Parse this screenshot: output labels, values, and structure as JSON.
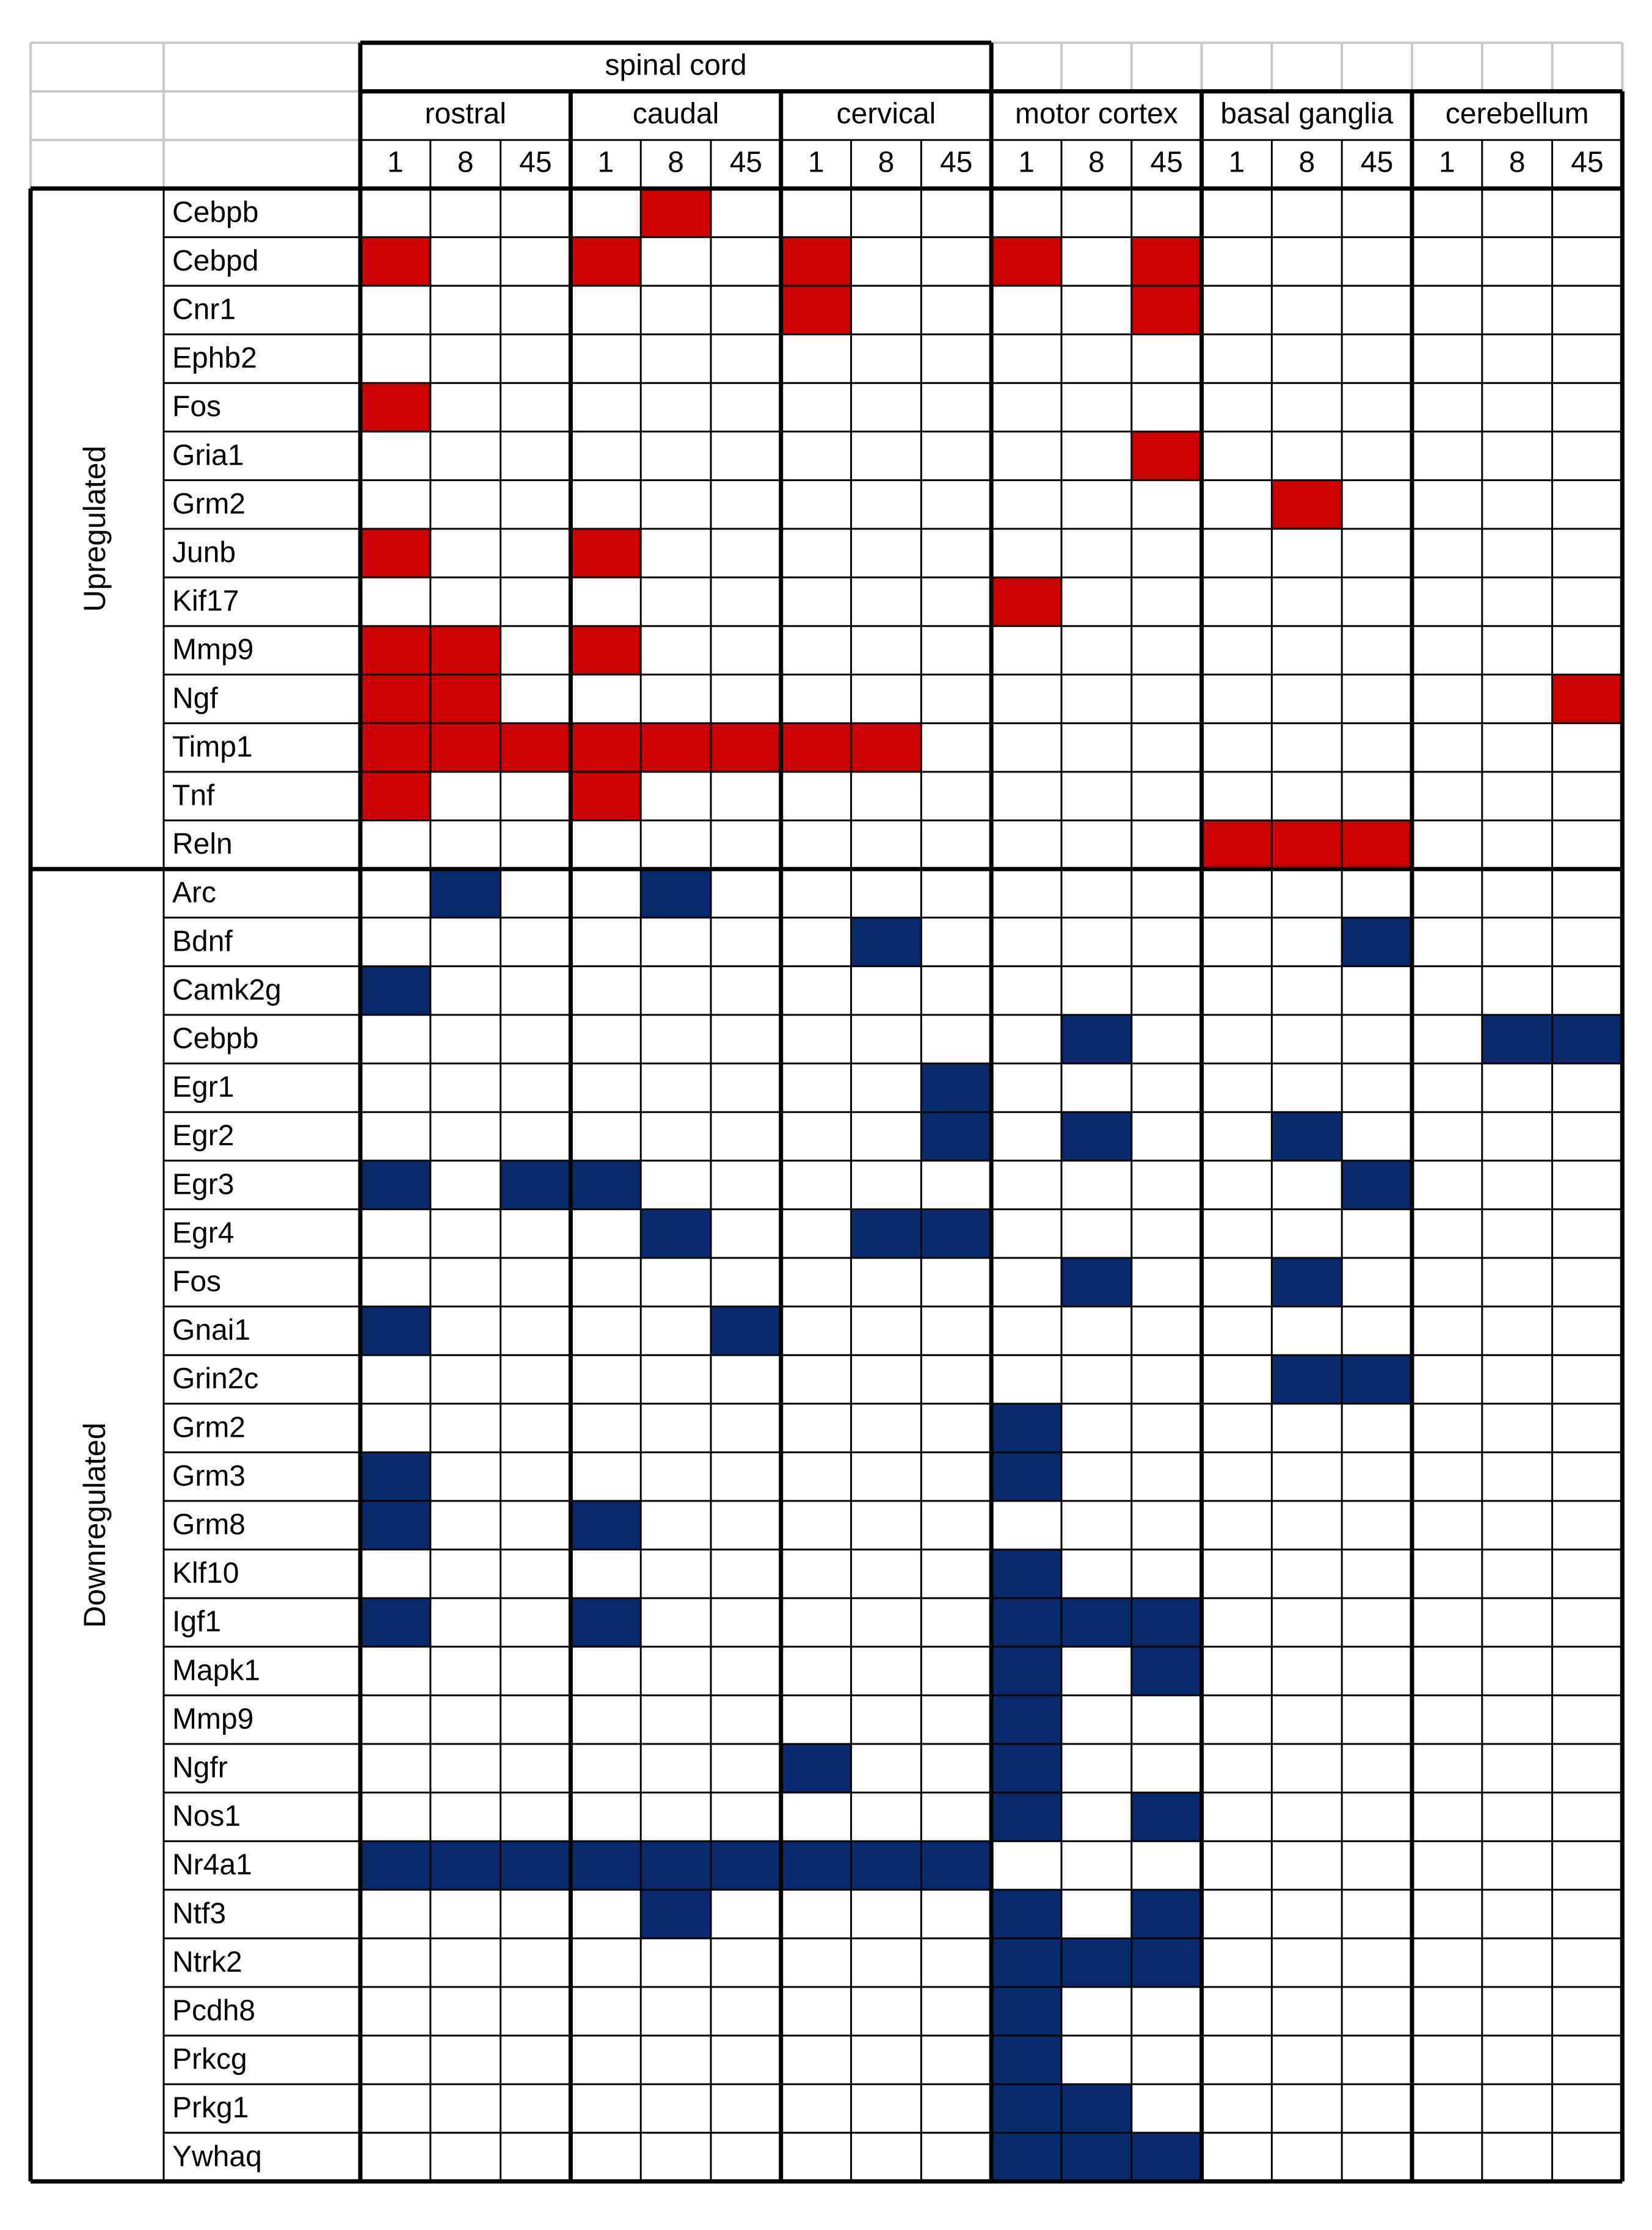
{
  "chart_data": {
    "type": "heatmap",
    "header": {
      "spinal_cord_label": "spinal cord",
      "regions": [
        "rostral",
        "caudal",
        "cervical",
        "motor cortex",
        "basal ganglia",
        "cerebellum"
      ],
      "timepoints": [
        "1",
        "8",
        "45"
      ]
    },
    "colors": {
      "up": "#cc0000",
      "down": "#0a2a6e",
      "grid": "#000000",
      "light_grid": "#c8c8c8",
      "none": "#ffffff"
    },
    "groups": [
      {
        "label": "Upregulated",
        "genes": [
          {
            "name": "Cebpb",
            "cells": [
              0,
              0,
              0,
              0,
              1,
              0,
              0,
              0,
              0,
              0,
              0,
              0,
              0,
              0,
              0,
              0,
              0,
              0
            ]
          },
          {
            "name": "Cebpd",
            "cells": [
              1,
              0,
              0,
              1,
              0,
              0,
              1,
              0,
              0,
              1,
              0,
              1,
              0,
              0,
              0,
              0,
              0,
              0
            ]
          },
          {
            "name": "Cnr1",
            "cells": [
              0,
              0,
              0,
              0,
              0,
              0,
              1,
              0,
              0,
              0,
              0,
              1,
              0,
              0,
              0,
              0,
              0,
              0
            ]
          },
          {
            "name": "Ephb2",
            "cells": [
              0,
              0,
              0,
              0,
              0,
              0,
              0,
              0,
              0,
              0,
              0,
              0,
              0,
              0,
              0,
              0,
              0,
              0
            ]
          },
          {
            "name": "Fos",
            "cells": [
              1,
              0,
              0,
              0,
              0,
              0,
              0,
              0,
              0,
              0,
              0,
              0,
              0,
              0,
              0,
              0,
              0,
              0
            ]
          },
          {
            "name": "Gria1",
            "cells": [
              0,
              0,
              0,
              0,
              0,
              0,
              0,
              0,
              0,
              0,
              0,
              1,
              0,
              0,
              0,
              0,
              0,
              0
            ]
          },
          {
            "name": "Grm2",
            "cells": [
              0,
              0,
              0,
              0,
              0,
              0,
              0,
              0,
              0,
              0,
              0,
              0,
              0,
              1,
              0,
              0,
              0,
              0
            ]
          },
          {
            "name": "Junb",
            "cells": [
              1,
              0,
              0,
              1,
              0,
              0,
              0,
              0,
              0,
              0,
              0,
              0,
              0,
              0,
              0,
              0,
              0,
              0
            ]
          },
          {
            "name": "Kif17",
            "cells": [
              0,
              0,
              0,
              0,
              0,
              0,
              0,
              0,
              0,
              1,
              0,
              0,
              0,
              0,
              0,
              0,
              0,
              0
            ]
          },
          {
            "name": "Mmp9",
            "cells": [
              1,
              1,
              0,
              1,
              0,
              0,
              0,
              0,
              0,
              0,
              0,
              0,
              0,
              0,
              0,
              0,
              0,
              0
            ]
          },
          {
            "name": "Ngf",
            "cells": [
              1,
              1,
              0,
              0,
              0,
              0,
              0,
              0,
              0,
              0,
              0,
              0,
              0,
              0,
              0,
              0,
              0,
              1
            ]
          },
          {
            "name": "Timp1",
            "cells": [
              1,
              1,
              1,
              1,
              1,
              1,
              1,
              1,
              0,
              0,
              0,
              0,
              0,
              0,
              0,
              0,
              0,
              0
            ]
          },
          {
            "name": "Tnf",
            "cells": [
              1,
              0,
              0,
              1,
              0,
              0,
              0,
              0,
              0,
              0,
              0,
              0,
              0,
              0,
              0,
              0,
              0,
              0
            ]
          },
          {
            "name": "Reln",
            "cells": [
              0,
              0,
              0,
              0,
              0,
              0,
              0,
              0,
              0,
              0,
              0,
              0,
              1,
              1,
              1,
              0,
              0,
              0
            ]
          }
        ]
      },
      {
        "label": "Downregulated",
        "genes": [
          {
            "name": "Arc",
            "cells": [
              0,
              -1,
              0,
              0,
              -1,
              0,
              0,
              0,
              0,
              0,
              0,
              0,
              0,
              0,
              0,
              0,
              0,
              0
            ]
          },
          {
            "name": "Bdnf",
            "cells": [
              0,
              0,
              0,
              0,
              0,
              0,
              0,
              -1,
              0,
              0,
              0,
              0,
              0,
              0,
              -1,
              0,
              0,
              0
            ]
          },
          {
            "name": "Camk2g",
            "cells": [
              -1,
              0,
              0,
              0,
              0,
              0,
              0,
              0,
              0,
              0,
              0,
              0,
              0,
              0,
              0,
              0,
              0,
              0
            ]
          },
          {
            "name": "Cebpb",
            "cells": [
              0,
              0,
              0,
              0,
              0,
              0,
              0,
              0,
              0,
              0,
              -1,
              0,
              0,
              0,
              0,
              0,
              -1,
              -1
            ]
          },
          {
            "name": "Egr1",
            "cells": [
              0,
              0,
              0,
              0,
              0,
              0,
              0,
              0,
              -1,
              0,
              0,
              0,
              0,
              0,
              0,
              0,
              0,
              0
            ]
          },
          {
            "name": "Egr2",
            "cells": [
              0,
              0,
              0,
              0,
              0,
              0,
              0,
              0,
              -1,
              0,
              -1,
              0,
              0,
              -1,
              0,
              0,
              0,
              0
            ]
          },
          {
            "name": "Egr3",
            "cells": [
              -1,
              0,
              -1,
              -1,
              0,
              0,
              0,
              0,
              0,
              0,
              0,
              0,
              0,
              0,
              -1,
              0,
              0,
              0
            ]
          },
          {
            "name": "Egr4",
            "cells": [
              0,
              0,
              0,
              0,
              -1,
              0,
              0,
              -1,
              -1,
              0,
              0,
              0,
              0,
              0,
              0,
              0,
              0,
              0
            ]
          },
          {
            "name": "Fos",
            "cells": [
              0,
              0,
              0,
              0,
              0,
              0,
              0,
              0,
              0,
              0,
              -1,
              0,
              0,
              -1,
              0,
              0,
              0,
              0
            ]
          },
          {
            "name": "Gnai1",
            "cells": [
              -1,
              0,
              0,
              0,
              0,
              -1,
              0,
              0,
              0,
              0,
              0,
              0,
              0,
              0,
              0,
              0,
              0,
              0
            ]
          },
          {
            "name": "Grin2c",
            "cells": [
              0,
              0,
              0,
              0,
              0,
              0,
              0,
              0,
              0,
              0,
              0,
              0,
              0,
              -1,
              -1,
              0,
              0,
              0
            ]
          },
          {
            "name": "Grm2",
            "cells": [
              0,
              0,
              0,
              0,
              0,
              0,
              0,
              0,
              0,
              -1,
              0,
              0,
              0,
              0,
              0,
              0,
              0,
              0
            ]
          },
          {
            "name": "Grm3",
            "cells": [
              -1,
              0,
              0,
              0,
              0,
              0,
              0,
              0,
              0,
              -1,
              0,
              0,
              0,
              0,
              0,
              0,
              0,
              0
            ]
          },
          {
            "name": "Grm8",
            "cells": [
              -1,
              0,
              0,
              -1,
              0,
              0,
              0,
              0,
              0,
              0,
              0,
              0,
              0,
              0,
              0,
              0,
              0,
              0
            ]
          },
          {
            "name": "Klf10",
            "cells": [
              0,
              0,
              0,
              0,
              0,
              0,
              0,
              0,
              0,
              -1,
              0,
              0,
              0,
              0,
              0,
              0,
              0,
              0
            ]
          },
          {
            "name": "Igf1",
            "cells": [
              -1,
              0,
              0,
              -1,
              0,
              0,
              0,
              0,
              0,
              -1,
              -1,
              -1,
              0,
              0,
              0,
              0,
              0,
              0
            ]
          },
          {
            "name": "Mapk1",
            "cells": [
              0,
              0,
              0,
              0,
              0,
              0,
              0,
              0,
              0,
              -1,
              0,
              -1,
              0,
              0,
              0,
              0,
              0,
              0
            ]
          },
          {
            "name": "Mmp9",
            "cells": [
              0,
              0,
              0,
              0,
              0,
              0,
              0,
              0,
              0,
              -1,
              0,
              0,
              0,
              0,
              0,
              0,
              0,
              0
            ]
          },
          {
            "name": "Ngfr",
            "cells": [
              0,
              0,
              0,
              0,
              0,
              0,
              -1,
              0,
              0,
              -1,
              0,
              0,
              0,
              0,
              0,
              0,
              0,
              0
            ]
          },
          {
            "name": "Nos1",
            "cells": [
              0,
              0,
              0,
              0,
              0,
              0,
              0,
              0,
              0,
              -1,
              0,
              -1,
              0,
              0,
              0,
              0,
              0,
              0
            ]
          },
          {
            "name": "Nr4a1",
            "cells": [
              -1,
              -1,
              -1,
              -1,
              -1,
              -1,
              -1,
              -1,
              -1,
              0,
              0,
              0,
              0,
              0,
              0,
              0,
              0,
              0
            ]
          },
          {
            "name": "Ntf3",
            "cells": [
              0,
              0,
              0,
              0,
              -1,
              0,
              0,
              0,
              0,
              -1,
              0,
              -1,
              0,
              0,
              0,
              0,
              0,
              0
            ]
          },
          {
            "name": "Ntrk2",
            "cells": [
              0,
              0,
              0,
              0,
              0,
              0,
              0,
              0,
              0,
              -1,
              -1,
              -1,
              0,
              0,
              0,
              0,
              0,
              0
            ]
          },
          {
            "name": "Pcdh8",
            "cells": [
              0,
              0,
              0,
              0,
              0,
              0,
              0,
              0,
              0,
              -1,
              0,
              0,
              0,
              0,
              0,
              0,
              0,
              0
            ]
          },
          {
            "name": "Prkcg",
            "cells": [
              0,
              0,
              0,
              0,
              0,
              0,
              0,
              0,
              0,
              -1,
              0,
              0,
              0,
              0,
              0,
              0,
              0,
              0
            ]
          },
          {
            "name": "Prkg1",
            "cells": [
              0,
              0,
              0,
              0,
              0,
              0,
              0,
              0,
              0,
              -1,
              -1,
              0,
              0,
              0,
              0,
              0,
              0,
              0
            ]
          },
          {
            "name": "Ywhaq",
            "cells": [
              0,
              0,
              0,
              0,
              0,
              0,
              0,
              0,
              0,
              -1,
              -1,
              -1,
              0,
              0,
              0,
              0,
              0,
              0
            ]
          }
        ]
      }
    ]
  }
}
